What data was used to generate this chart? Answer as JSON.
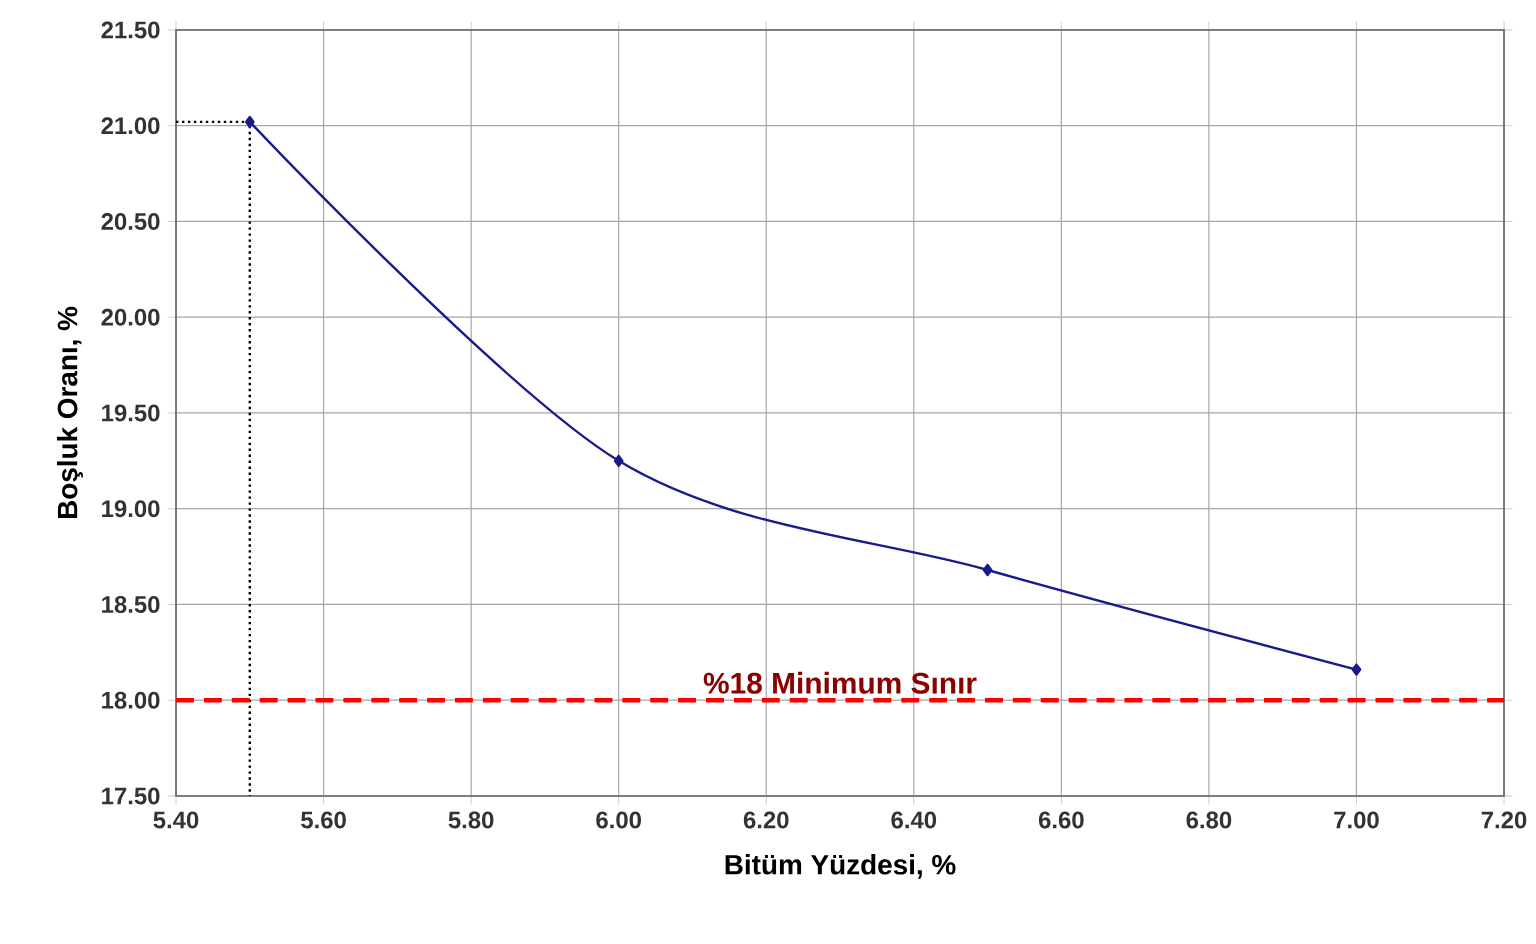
{
  "chart_data": {
    "type": "line",
    "xlabel": "Bitüm Yüzdesi, %",
    "ylabel": "Boşluk Oranı, %",
    "xlim": [
      5.4,
      7.2
    ],
    "ylim": [
      17.5,
      21.5
    ],
    "xticks": [
      {
        "value": 5.4,
        "label": "5.40"
      },
      {
        "value": 5.6,
        "label": "5.60"
      },
      {
        "value": 5.8,
        "label": "5.80"
      },
      {
        "value": 6.0,
        "label": "6.00"
      },
      {
        "value": 6.2,
        "label": "6.20"
      },
      {
        "value": 6.4,
        "label": "6.40"
      },
      {
        "value": 6.6,
        "label": "6.60"
      },
      {
        "value": 6.8,
        "label": "6.80"
      },
      {
        "value": 7.0,
        "label": "7.00"
      },
      {
        "value": 7.2,
        "label": "7.20"
      }
    ],
    "yticks": [
      {
        "value": 17.5,
        "label": "17.50"
      },
      {
        "value": 18.0,
        "label": "18.00"
      },
      {
        "value": 18.5,
        "label": "18.50"
      },
      {
        "value": 19.0,
        "label": "19.00"
      },
      {
        "value": 19.5,
        "label": "19.50"
      },
      {
        "value": 20.0,
        "label": "20.00"
      },
      {
        "value": 20.5,
        "label": "20.50"
      },
      {
        "value": 21.0,
        "label": "21.00"
      },
      {
        "value": 21.5,
        "label": "21.50"
      }
    ],
    "grid": true,
    "series": [
      {
        "color": "#1a1a8c",
        "x": [
          5.5,
          6.0,
          6.5,
          7.0
        ],
        "values": [
          21.02,
          19.25,
          18.68,
          18.16
        ],
        "marker": "diamond",
        "line_style": "solid"
      },
      {
        "color": "#000000",
        "x": [
          5.4,
          5.5,
          5.5
        ],
        "values": [
          21.02,
          21.02,
          17.5
        ],
        "marker": "none",
        "line_style": "dotted"
      }
    ],
    "ref_lines": [
      {
        "axis": "y",
        "value": 18.0,
        "label": "%18 Minimum Sınır",
        "color": "#ff0000",
        "line_style": "dashed"
      }
    ]
  }
}
